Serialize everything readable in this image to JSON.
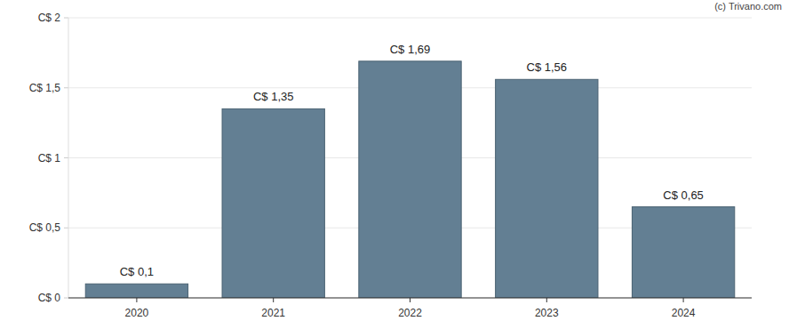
{
  "chart_data": {
    "type": "bar",
    "annotations": [
      "(c) Trivano.com"
    ],
    "categories": [
      "2020",
      "2021",
      "2022",
      "2023",
      "2024"
    ],
    "values": [
      0.1,
      1.35,
      1.69,
      1.56,
      0.65
    ],
    "value_labels": [
      "C$ 0,1",
      "C$ 1,35",
      "C$ 1,69",
      "C$ 1,56",
      "C$ 0,65"
    ],
    "color": "#637f93",
    "ylim": [
      0,
      2
    ],
    "yticks": [
      {
        "value": 0,
        "label": "C$ 0"
      },
      {
        "value": 0.5,
        "label": "C$ 0,5"
      },
      {
        "value": 1,
        "label": "C$ 1"
      },
      {
        "value": 1.5,
        "label": "C$ 1,5"
      },
      {
        "value": 2,
        "label": "C$ 2"
      }
    ],
    "grid": true,
    "data_labels": true
  }
}
